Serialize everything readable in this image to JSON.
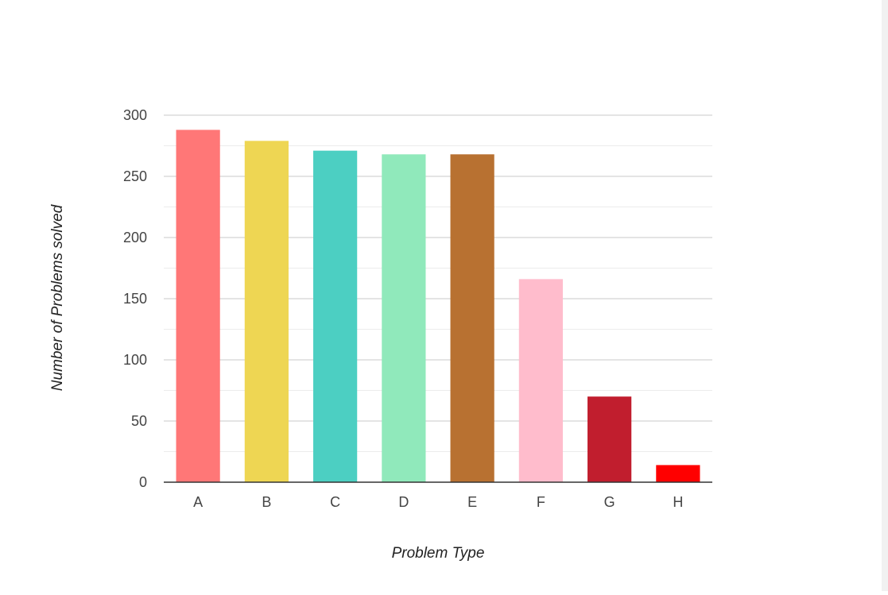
{
  "chart_data": {
    "type": "bar",
    "categories": [
      "A",
      "B",
      "C",
      "D",
      "E",
      "F",
      "G",
      "H"
    ],
    "values": [
      288,
      279,
      271,
      268,
      268,
      166,
      70,
      14
    ],
    "colors": [
      "#ff7777",
      "#eed653",
      "#4ccfc2",
      "#90e9bb",
      "#b87131",
      "#ffbccc",
      "#c11e2e",
      "#ff0000"
    ],
    "title": "",
    "xlabel": "Problem Type",
    "ylabel": "Number of Problems solved",
    "ylim": [
      0,
      300
    ],
    "yticks": [
      0,
      50,
      100,
      150,
      200,
      250,
      300
    ],
    "grid": true,
    "legend": "none"
  }
}
